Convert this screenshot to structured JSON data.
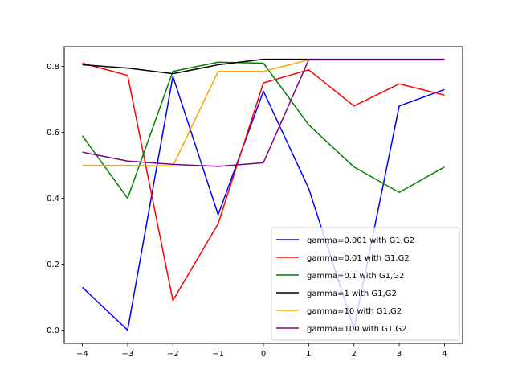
{
  "chart_data": {
    "type": "line",
    "title": "",
    "xlabel": "",
    "ylabel": "",
    "x": [
      -4,
      -3,
      -2,
      -1,
      0,
      1,
      2,
      3,
      4
    ],
    "xlim": [
      -4.4,
      4.4
    ],
    "ylim": [
      -0.04,
      0.86
    ],
    "xticks": [
      -4,
      -3,
      -2,
      -1,
      0,
      1,
      2,
      3,
      4
    ],
    "xtick_labels": [
      "−4",
      "−3",
      "−2",
      "−1",
      "0",
      "1",
      "2",
      "3",
      "4"
    ],
    "yticks": [
      0.0,
      0.2,
      0.4,
      0.6,
      0.8
    ],
    "ytick_labels": [
      "0.0",
      "0.2",
      "0.4",
      "0.6",
      "0.8"
    ],
    "grid": false,
    "legend_position": "lower-right",
    "series": [
      {
        "name": "gamma=0.001 with G1,G2",
        "color": "#0000ff",
        "values": [
          0.13,
          0.0,
          0.77,
          0.35,
          0.725,
          0.43,
          0.005,
          0.68,
          0.73
        ]
      },
      {
        "name": "gamma=0.01 with G1,G2",
        "color": "#ff0000",
        "values": [
          0.81,
          0.773,
          0.09,
          0.323,
          0.75,
          0.79,
          0.68,
          0.747,
          0.713
        ]
      },
      {
        "name": "gamma=0.1 with G1,G2",
        "color": "#008000",
        "values": [
          0.59,
          0.4,
          0.785,
          0.813,
          0.81,
          0.623,
          0.495,
          0.418,
          0.495
        ]
      },
      {
        "name": "gamma=1 with G1,G2",
        "color": "#000000",
        "values": [
          0.805,
          0.795,
          0.778,
          0.805,
          0.822,
          0.822,
          0.822,
          0.822,
          0.822
        ]
      },
      {
        "name": "gamma=10 with G1,G2",
        "color": "#ffa500",
        "values": [
          0.5,
          0.5,
          0.498,
          0.785,
          0.785,
          0.82,
          0.82,
          0.82,
          0.82
        ]
      },
      {
        "name": "gamma=100 with G1,G2",
        "color": "#800080",
        "values": [
          0.54,
          0.513,
          0.503,
          0.497,
          0.508,
          0.82,
          0.82,
          0.82,
          0.82
        ]
      }
    ]
  }
}
